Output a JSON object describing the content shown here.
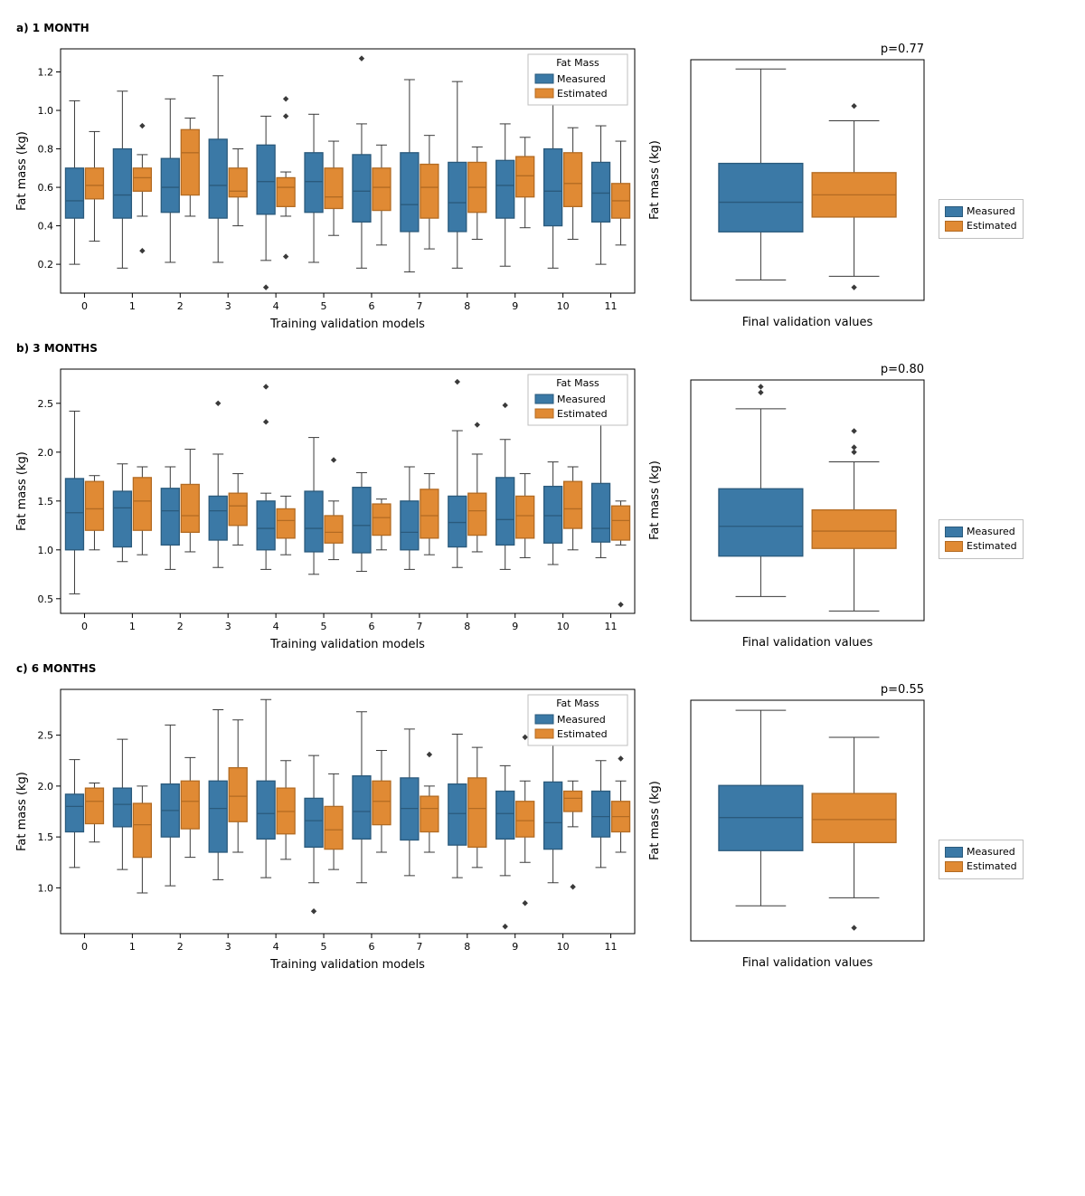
{
  "colors": {
    "measured_fill": "#3b79a6",
    "measured_edge": "#2a5a7c",
    "estimated_fill": "#e08a34",
    "estimated_edge": "#b36b22",
    "whisker": "#3a3a3a",
    "outlier": "#3a3a3a",
    "axis": "#000000"
  },
  "legend": {
    "title": "Fat Mass",
    "items": [
      "Measured",
      "Estimated"
    ]
  },
  "ext_legend_items": [
    "Measured",
    "Estimated"
  ],
  "panels": [
    {
      "key": "a",
      "title": "a) 1 MONTH",
      "ylabel": "Fat mass (kg)",
      "xlabel": "Training validation models",
      "yticks": [
        0.2,
        0.4,
        0.6,
        0.8,
        1.0,
        1.2
      ],
      "ylim": [
        0.05,
        1.32
      ],
      "x_categories": [
        0,
        1,
        2,
        3,
        4,
        5,
        6,
        7,
        8,
        9,
        10,
        11
      ],
      "series": [
        {
          "m": {
            "q1": 0.44,
            "med": 0.53,
            "q3": 0.7,
            "lo": 0.2,
            "hi": 1.05,
            "out": []
          },
          "e": {
            "q1": 0.54,
            "med": 0.61,
            "q3": 0.7,
            "lo": 0.32,
            "hi": 0.89,
            "out": []
          }
        },
        {
          "m": {
            "q1": 0.44,
            "med": 0.56,
            "q3": 0.8,
            "lo": 0.18,
            "hi": 1.1,
            "out": []
          },
          "e": {
            "q1": 0.58,
            "med": 0.65,
            "q3": 0.7,
            "lo": 0.45,
            "hi": 0.77,
            "out": [
              0.92,
              0.27
            ]
          }
        },
        {
          "m": {
            "q1": 0.47,
            "med": 0.6,
            "q3": 0.75,
            "lo": 0.21,
            "hi": 1.06,
            "out": []
          },
          "e": {
            "q1": 0.56,
            "med": 0.78,
            "q3": 0.9,
            "lo": 0.45,
            "hi": 0.96,
            "out": []
          }
        },
        {
          "m": {
            "q1": 0.44,
            "med": 0.61,
            "q3": 0.85,
            "lo": 0.21,
            "hi": 1.18,
            "out": []
          },
          "e": {
            "q1": 0.55,
            "med": 0.58,
            "q3": 0.7,
            "lo": 0.4,
            "hi": 0.8,
            "out": []
          }
        },
        {
          "m": {
            "q1": 0.46,
            "med": 0.63,
            "q3": 0.82,
            "lo": 0.22,
            "hi": 0.97,
            "out": [
              0.08
            ]
          },
          "e": {
            "q1": 0.5,
            "med": 0.6,
            "q3": 0.65,
            "lo": 0.45,
            "hi": 0.68,
            "out": [
              1.06,
              0.97,
              0.24
            ]
          }
        },
        {
          "m": {
            "q1": 0.47,
            "med": 0.63,
            "q3": 0.78,
            "lo": 0.21,
            "hi": 0.98,
            "out": []
          },
          "e": {
            "q1": 0.49,
            "med": 0.55,
            "q3": 0.7,
            "lo": 0.35,
            "hi": 0.84,
            "out": []
          }
        },
        {
          "m": {
            "q1": 0.42,
            "med": 0.58,
            "q3": 0.77,
            "lo": 0.18,
            "hi": 0.93,
            "out": [
              1.27
            ]
          },
          "e": {
            "q1": 0.48,
            "med": 0.6,
            "q3": 0.7,
            "lo": 0.3,
            "hi": 0.82,
            "out": []
          }
        },
        {
          "m": {
            "q1": 0.37,
            "med": 0.51,
            "q3": 0.78,
            "lo": 0.16,
            "hi": 1.16,
            "out": []
          },
          "e": {
            "q1": 0.44,
            "med": 0.6,
            "q3": 0.72,
            "lo": 0.28,
            "hi": 0.87,
            "out": []
          }
        },
        {
          "m": {
            "q1": 0.37,
            "med": 0.52,
            "q3": 0.73,
            "lo": 0.18,
            "hi": 1.15,
            "out": []
          },
          "e": {
            "q1": 0.47,
            "med": 0.6,
            "q3": 0.73,
            "lo": 0.33,
            "hi": 0.81,
            "out": []
          }
        },
        {
          "m": {
            "q1": 0.44,
            "med": 0.61,
            "q3": 0.74,
            "lo": 0.19,
            "hi": 0.93,
            "out": []
          },
          "e": {
            "q1": 0.55,
            "med": 0.66,
            "q3": 0.76,
            "lo": 0.39,
            "hi": 0.86,
            "out": []
          }
        },
        {
          "m": {
            "q1": 0.4,
            "med": 0.58,
            "q3": 0.8,
            "lo": 0.18,
            "hi": 1.03,
            "out": []
          },
          "e": {
            "q1": 0.5,
            "med": 0.62,
            "q3": 0.78,
            "lo": 0.33,
            "hi": 0.91,
            "out": []
          }
        },
        {
          "m": {
            "q1": 0.42,
            "med": 0.57,
            "q3": 0.73,
            "lo": 0.2,
            "hi": 0.92,
            "out": []
          },
          "e": {
            "q1": 0.44,
            "med": 0.53,
            "q3": 0.62,
            "lo": 0.3,
            "hi": 0.84,
            "out": []
          }
        }
      ],
      "final": {
        "pvalue": "p=0.77",
        "ylabel": "Fat mass (kg)",
        "xlabel": "Final validation values",
        "ylim": [
          0.05,
          1.35
        ],
        "m": {
          "q1": 0.42,
          "med": 0.58,
          "q3": 0.79,
          "lo": 0.16,
          "hi": 1.3,
          "out": []
        },
        "e": {
          "q1": 0.5,
          "med": 0.62,
          "q3": 0.74,
          "lo": 0.18,
          "hi": 1.02,
          "out": [
            1.1,
            0.12
          ]
        }
      }
    },
    {
      "key": "b",
      "title": "b) 3 MONTHS",
      "ylabel": "Fat mass (kg)",
      "xlabel": "Training validation models",
      "yticks": [
        0.5,
        1.0,
        1.5,
        2.0,
        2.5
      ],
      "ylim": [
        0.35,
        2.85
      ],
      "x_categories": [
        0,
        1,
        2,
        3,
        4,
        5,
        6,
        7,
        8,
        9,
        10,
        11
      ],
      "series": [
        {
          "m": {
            "q1": 1.0,
            "med": 1.38,
            "q3": 1.73,
            "lo": 0.55,
            "hi": 2.42,
            "out": []
          },
          "e": {
            "q1": 1.2,
            "med": 1.42,
            "q3": 1.7,
            "lo": 1.0,
            "hi": 1.76,
            "out": []
          }
        },
        {
          "m": {
            "q1": 1.03,
            "med": 1.43,
            "q3": 1.6,
            "lo": 0.88,
            "hi": 1.88,
            "out": []
          },
          "e": {
            "q1": 1.2,
            "med": 1.5,
            "q3": 1.74,
            "lo": 0.95,
            "hi": 1.85,
            "out": []
          }
        },
        {
          "m": {
            "q1": 1.05,
            "med": 1.4,
            "q3": 1.63,
            "lo": 0.8,
            "hi": 1.85,
            "out": []
          },
          "e": {
            "q1": 1.18,
            "med": 1.35,
            "q3": 1.67,
            "lo": 0.98,
            "hi": 2.03,
            "out": []
          }
        },
        {
          "m": {
            "q1": 1.1,
            "med": 1.4,
            "q3": 1.55,
            "lo": 0.82,
            "hi": 1.98,
            "out": [
              2.5
            ]
          },
          "e": {
            "q1": 1.25,
            "med": 1.45,
            "q3": 1.58,
            "lo": 1.05,
            "hi": 1.78,
            "out": []
          }
        },
        {
          "m": {
            "q1": 1.0,
            "med": 1.22,
            "q3": 1.5,
            "lo": 0.8,
            "hi": 1.58,
            "out": [
              2.67,
              2.31
            ]
          },
          "e": {
            "q1": 1.12,
            "med": 1.3,
            "q3": 1.42,
            "lo": 0.95,
            "hi": 1.55,
            "out": []
          }
        },
        {
          "m": {
            "q1": 0.98,
            "med": 1.22,
            "q3": 1.6,
            "lo": 0.75,
            "hi": 2.15,
            "out": []
          },
          "e": {
            "q1": 1.07,
            "med": 1.18,
            "q3": 1.35,
            "lo": 0.9,
            "hi": 1.5,
            "out": [
              1.92
            ]
          }
        },
        {
          "m": {
            "q1": 0.97,
            "med": 1.25,
            "q3": 1.64,
            "lo": 0.78,
            "hi": 1.79,
            "out": []
          },
          "e": {
            "q1": 1.15,
            "med": 1.33,
            "q3": 1.47,
            "lo": 1.0,
            "hi": 1.52,
            "out": []
          }
        },
        {
          "m": {
            "q1": 1.0,
            "med": 1.18,
            "q3": 1.5,
            "lo": 0.8,
            "hi": 1.85,
            "out": []
          },
          "e": {
            "q1": 1.12,
            "med": 1.35,
            "q3": 1.62,
            "lo": 0.95,
            "hi": 1.78,
            "out": []
          }
        },
        {
          "m": {
            "q1": 1.03,
            "med": 1.28,
            "q3": 1.55,
            "lo": 0.82,
            "hi": 2.22,
            "out": [
              2.72
            ]
          },
          "e": {
            "q1": 1.15,
            "med": 1.4,
            "q3": 1.58,
            "lo": 0.98,
            "hi": 1.98,
            "out": [
              2.28
            ]
          }
        },
        {
          "m": {
            "q1": 1.05,
            "med": 1.31,
            "q3": 1.74,
            "lo": 0.8,
            "hi": 2.13,
            "out": [
              2.48
            ]
          },
          "e": {
            "q1": 1.12,
            "med": 1.35,
            "q3": 1.55,
            "lo": 0.92,
            "hi": 1.78,
            "out": []
          }
        },
        {
          "m": {
            "q1": 1.07,
            "med": 1.35,
            "q3": 1.65,
            "lo": 0.85,
            "hi": 1.9,
            "out": []
          },
          "e": {
            "q1": 1.22,
            "med": 1.42,
            "q3": 1.7,
            "lo": 1.0,
            "hi": 1.85,
            "out": []
          }
        },
        {
          "m": {
            "q1": 1.08,
            "med": 1.22,
            "q3": 1.68,
            "lo": 0.92,
            "hi": 2.33,
            "out": []
          },
          "e": {
            "q1": 1.1,
            "med": 1.3,
            "q3": 1.45,
            "lo": 1.05,
            "hi": 1.5,
            "out": [
              0.44
            ]
          }
        }
      ],
      "final": {
        "pvalue": "p=0.80",
        "ylabel": "Fat mass (kg)",
        "xlabel": "Final validation values",
        "ylim": [
          0.35,
          2.85
        ],
        "m": {
          "q1": 1.02,
          "med": 1.33,
          "q3": 1.72,
          "lo": 0.6,
          "hi": 2.55,
          "out": [
            2.72,
            2.78
          ]
        },
        "e": {
          "q1": 1.1,
          "med": 1.28,
          "q3": 1.5,
          "lo": 0.45,
          "hi": 2.0,
          "out": [
            2.15,
            2.1,
            2.32
          ]
        }
      }
    },
    {
      "key": "c",
      "title": "c) 6 MONTHS",
      "ylabel": "Fat mass (kg)",
      "xlabel": "Training validation models",
      "yticks": [
        1.0,
        1.5,
        2.0,
        2.5
      ],
      "ylim": [
        0.55,
        2.95
      ],
      "x_categories": [
        0,
        1,
        2,
        3,
        4,
        5,
        6,
        7,
        8,
        9,
        10,
        11
      ],
      "series": [
        {
          "m": {
            "q1": 1.55,
            "med": 1.8,
            "q3": 1.92,
            "lo": 1.2,
            "hi": 2.26,
            "out": []
          },
          "e": {
            "q1": 1.63,
            "med": 1.85,
            "q3": 1.98,
            "lo": 1.45,
            "hi": 2.03,
            "out": []
          }
        },
        {
          "m": {
            "q1": 1.6,
            "med": 1.82,
            "q3": 1.98,
            "lo": 1.18,
            "hi": 2.46,
            "out": []
          },
          "e": {
            "q1": 1.3,
            "med": 1.62,
            "q3": 1.83,
            "lo": 0.95,
            "hi": 2.0,
            "out": []
          }
        },
        {
          "m": {
            "q1": 1.5,
            "med": 1.76,
            "q3": 2.02,
            "lo": 1.02,
            "hi": 2.6,
            "out": []
          },
          "e": {
            "q1": 1.58,
            "med": 1.85,
            "q3": 2.05,
            "lo": 1.3,
            "hi": 2.28,
            "out": []
          }
        },
        {
          "m": {
            "q1": 1.35,
            "med": 1.78,
            "q3": 2.05,
            "lo": 1.08,
            "hi": 2.75,
            "out": []
          },
          "e": {
            "q1": 1.65,
            "med": 1.9,
            "q3": 2.18,
            "lo": 1.35,
            "hi": 2.65,
            "out": []
          }
        },
        {
          "m": {
            "q1": 1.48,
            "med": 1.73,
            "q3": 2.05,
            "lo": 1.1,
            "hi": 2.85,
            "out": []
          },
          "e": {
            "q1": 1.53,
            "med": 1.75,
            "q3": 1.98,
            "lo": 1.28,
            "hi": 2.25,
            "out": []
          }
        },
        {
          "m": {
            "q1": 1.4,
            "med": 1.66,
            "q3": 1.88,
            "lo": 1.05,
            "hi": 2.3,
            "out": [
              0.77
            ]
          },
          "e": {
            "q1": 1.38,
            "med": 1.57,
            "q3": 1.8,
            "lo": 1.18,
            "hi": 2.12,
            "out": []
          }
        },
        {
          "m": {
            "q1": 1.48,
            "med": 1.75,
            "q3": 2.1,
            "lo": 1.05,
            "hi": 2.73,
            "out": []
          },
          "e": {
            "q1": 1.62,
            "med": 1.85,
            "q3": 2.05,
            "lo": 1.35,
            "hi": 2.35,
            "out": []
          }
        },
        {
          "m": {
            "q1": 1.47,
            "med": 1.78,
            "q3": 2.08,
            "lo": 1.12,
            "hi": 2.56,
            "out": []
          },
          "e": {
            "q1": 1.55,
            "med": 1.78,
            "q3": 1.9,
            "lo": 1.35,
            "hi": 2.0,
            "out": [
              2.31
            ]
          }
        },
        {
          "m": {
            "q1": 1.42,
            "med": 1.73,
            "q3": 2.02,
            "lo": 1.1,
            "hi": 2.51,
            "out": []
          },
          "e": {
            "q1": 1.4,
            "med": 1.78,
            "q3": 2.08,
            "lo": 1.2,
            "hi": 2.38,
            "out": []
          }
        },
        {
          "m": {
            "q1": 1.48,
            "med": 1.73,
            "q3": 1.95,
            "lo": 1.12,
            "hi": 2.2,
            "out": [
              0.62
            ]
          },
          "e": {
            "q1": 1.5,
            "med": 1.66,
            "q3": 1.85,
            "lo": 1.25,
            "hi": 2.05,
            "out": [
              2.48,
              0.85
            ]
          }
        },
        {
          "m": {
            "q1": 1.38,
            "med": 1.64,
            "q3": 2.04,
            "lo": 1.05,
            "hi": 2.48,
            "out": []
          },
          "e": {
            "q1": 1.75,
            "med": 1.88,
            "q3": 1.95,
            "lo": 1.6,
            "hi": 2.05,
            "out": [
              1.01
            ]
          }
        },
        {
          "m": {
            "q1": 1.5,
            "med": 1.7,
            "q3": 1.95,
            "lo": 1.2,
            "hi": 2.25,
            "out": []
          },
          "e": {
            "q1": 1.55,
            "med": 1.7,
            "q3": 1.85,
            "lo": 1.35,
            "hi": 2.05,
            "out": [
              2.27
            ]
          }
        }
      ],
      "final": {
        "pvalue": "p=0.55",
        "ylabel": "Fat mass (kg)",
        "xlabel": "Final validation values",
        "ylim": [
          0.55,
          2.95
        ],
        "m": {
          "q1": 1.45,
          "med": 1.78,
          "q3": 2.1,
          "lo": 0.9,
          "hi": 2.85,
          "out": []
        },
        "e": {
          "q1": 1.53,
          "med": 1.76,
          "q3": 2.02,
          "lo": 0.98,
          "hi": 2.58,
          "out": [
            0.68
          ]
        }
      }
    }
  ],
  "layout": {
    "main_w": 700,
    "main_h": 330,
    "pad_l": 55,
    "pad_r": 10,
    "pad_t": 12,
    "pad_b": 48,
    "side_w": 320,
    "side_h": 330,
    "side_pad_l": 52,
    "side_pad_r": 10,
    "side_pad_t": 24,
    "side_pad_b": 40,
    "box_halfwidth": 10,
    "box_gap": 11
  }
}
